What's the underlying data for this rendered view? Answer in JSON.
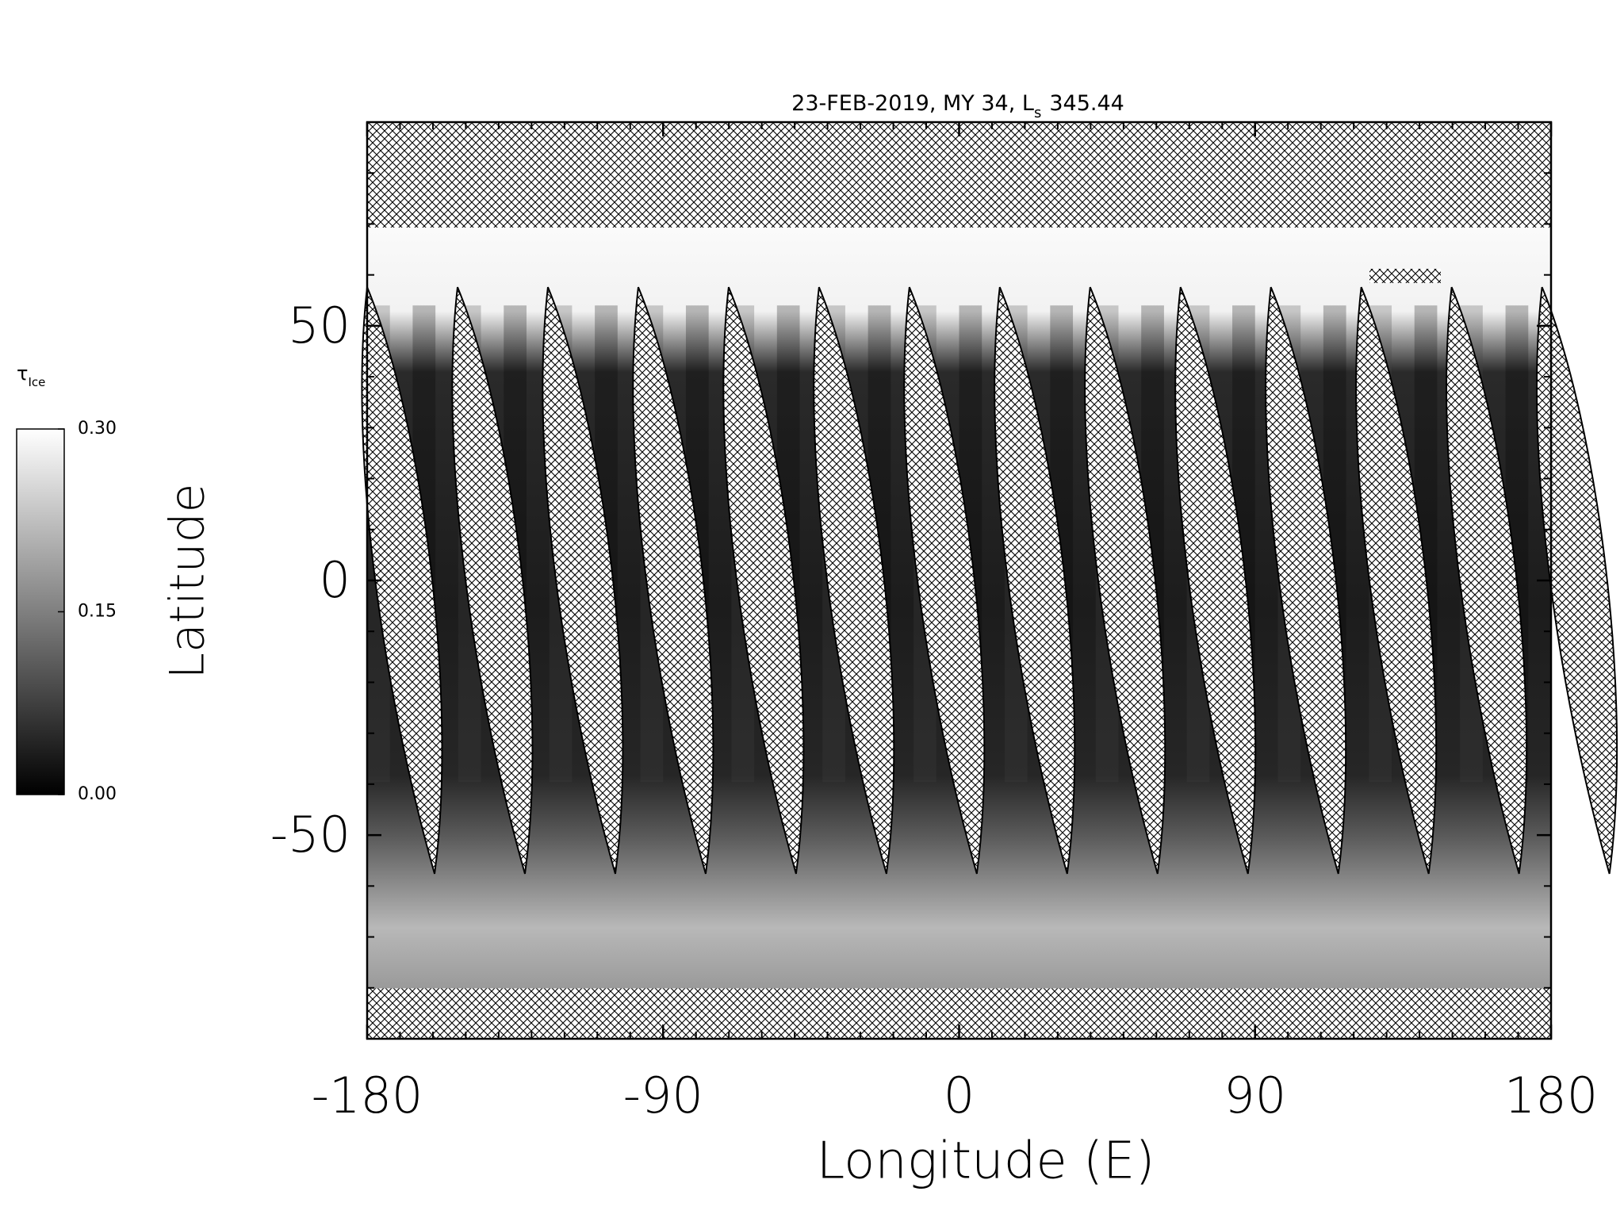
{
  "chart_data": {
    "type": "map",
    "title": "23-FEB-2019, MY 34,  L",
    "title_subscript": "s",
    "title_suffix": "345.44",
    "x_label": "Longitude (E)",
    "y_label": "Latitude",
    "xlim": [
      -180,
      180
    ],
    "xticks": [
      -180,
      -90,
      0,
      90,
      180
    ],
    "ylim": [
      -90,
      90
    ],
    "yticks": [
      -50,
      0,
      50
    ],
    "colorbar": {
      "label": "τ",
      "label_subscript": "Ice",
      "lim": [
        0,
        0.3
      ],
      "ticks": [
        {
          "value": 0,
          "label": "0.00"
        },
        {
          "value": 0.15,
          "label": "0.15"
        },
        {
          "value": 0.3,
          "label": "0.30"
        }
      ]
    }
  }
}
